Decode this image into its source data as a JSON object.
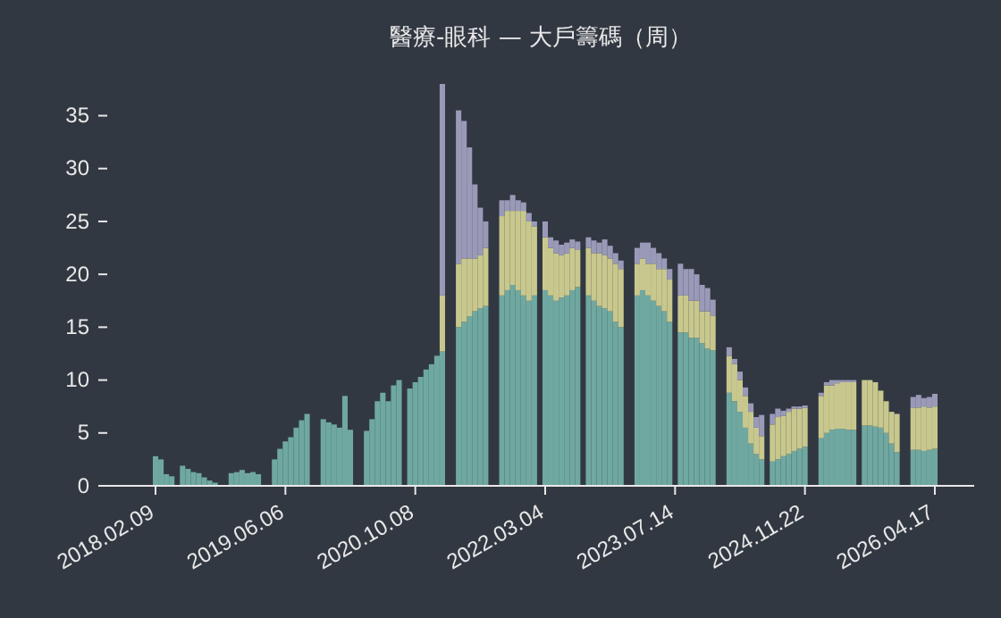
{
  "chart_data": {
    "type": "bar",
    "title": "醫療-眼科 — 大戶籌碼（周）",
    "stacked": true,
    "categories": [
      "2018.02.09",
      null,
      null,
      null,
      null,
      null,
      null,
      null,
      null,
      null,
      null,
      null,
      null,
      null,
      null,
      null,
      null,
      null,
      null,
      null,
      null,
      null,
      null,
      null,
      "2019.06.06",
      null,
      null,
      null,
      null,
      null,
      null,
      null,
      null,
      null,
      null,
      null,
      null,
      null,
      null,
      null,
      null,
      null,
      null,
      null,
      null,
      null,
      null,
      null,
      "2020.10.08",
      null,
      null,
      null,
      null,
      null,
      null,
      null,
      null,
      null,
      null,
      null,
      null,
      null,
      null,
      null,
      null,
      null,
      null,
      null,
      null,
      null,
      null,
      null,
      "2022.03.04",
      null,
      null,
      null,
      null,
      null,
      null,
      null,
      null,
      null,
      null,
      null,
      null,
      null,
      null,
      null,
      null,
      null,
      null,
      null,
      null,
      null,
      null,
      null,
      "2023.07.14",
      null,
      null,
      null,
      null,
      null,
      null,
      null,
      null,
      null,
      null,
      null,
      null,
      null,
      null,
      null,
      null,
      null,
      null,
      null,
      null,
      null,
      null,
      null,
      "2024.11.22",
      null,
      null,
      null,
      null,
      null,
      null,
      null,
      null,
      null,
      null,
      null,
      null,
      null,
      null,
      null,
      null,
      null,
      null,
      null,
      null,
      null,
      null,
      null,
      "2026.04.17"
    ],
    "series": [
      {
        "color": "#6fa8a0",
        "values": [
          2.8,
          2.5,
          1.1,
          0.9,
          null,
          1.9,
          1.6,
          1.3,
          1.2,
          0.8,
          0.5,
          0.3,
          null,
          null,
          1.2,
          1.3,
          1.5,
          1.2,
          1.3,
          1.1,
          null,
          null,
          2.5,
          3.5,
          4.2,
          4.6,
          5.5,
          6.2,
          6.8,
          null,
          null,
          6.3,
          6.0,
          5.8,
          5.5,
          8.5,
          5.3,
          null,
          null,
          5.2,
          6.3,
          8.0,
          8.8,
          8.0,
          9.5,
          10.0,
          null,
          9.2,
          9.8,
          10.3,
          11.0,
          11.5,
          12.3,
          12.7,
          null,
          null,
          15,
          15.5,
          16,
          16.5,
          16.8,
          17,
          null,
          null,
          18,
          18.5,
          19,
          18.5,
          18,
          17.5,
          18,
          null,
          18.5,
          18,
          17.5,
          17.8,
          18,
          18.5,
          18.8,
          null,
          18,
          17.5,
          17,
          16.8,
          16.5,
          15.5,
          15,
          null,
          null,
          18,
          18.5,
          18,
          17.5,
          17,
          16.5,
          15.5,
          null,
          14.5,
          14.5,
          14,
          14,
          13.5,
          13,
          12.8,
          null,
          null,
          8.8,
          8,
          7,
          5.5,
          4,
          3,
          2.5,
          null,
          2.3,
          2.5,
          2.8,
          3,
          3.3,
          3.5,
          3.7,
          null,
          null,
          4.5,
          5,
          5.3,
          5.4,
          5.4,
          5.3,
          5.3,
          null,
          5.7,
          5.7,
          5.6,
          5.5,
          5,
          4,
          3.2,
          null,
          null,
          3.4,
          3.4,
          3.3,
          3.4,
          3.5
        ]
      },
      {
        "color": "#c8c88e",
        "values": [
          null,
          null,
          null,
          null,
          null,
          null,
          null,
          null,
          null,
          null,
          null,
          null,
          null,
          null,
          null,
          null,
          null,
          null,
          null,
          null,
          null,
          null,
          null,
          null,
          null,
          null,
          null,
          null,
          null,
          null,
          null,
          null,
          null,
          null,
          null,
          null,
          null,
          null,
          null,
          null,
          null,
          null,
          null,
          null,
          null,
          null,
          null,
          null,
          null,
          null,
          null,
          null,
          null,
          5.3,
          null,
          null,
          6,
          6,
          5.5,
          5,
          5,
          5.5,
          null,
          null,
          7.5,
          7.5,
          7,
          7.5,
          8,
          7.5,
          6.5,
          null,
          5,
          4.5,
          4.5,
          4,
          4,
          4,
          3.5,
          null,
          4.5,
          4.5,
          5,
          5,
          5,
          5.5,
          5.5,
          null,
          null,
          3,
          3,
          3,
          3.5,
          3.5,
          4,
          4,
          null,
          3.5,
          3.5,
          3.5,
          3.5,
          3,
          3.5,
          3.3,
          null,
          null,
          3.5,
          3.5,
          3,
          3,
          3,
          2.5,
          2.2,
          null,
          3.5,
          4,
          3.8,
          4,
          4,
          3.8,
          3.7,
          null,
          null,
          4,
          4.5,
          4.2,
          4.3,
          4.4,
          4.5,
          4.5,
          null,
          4.3,
          4.3,
          4.2,
          3.5,
          3,
          3,
          3.6,
          null,
          null,
          4,
          4,
          4.2,
          4,
          4
        ]
      },
      {
        "color": "#9a9ab8",
        "values": [
          null,
          null,
          null,
          null,
          null,
          null,
          null,
          null,
          null,
          null,
          null,
          null,
          null,
          null,
          null,
          null,
          null,
          null,
          null,
          null,
          null,
          null,
          null,
          null,
          null,
          null,
          null,
          null,
          null,
          null,
          null,
          null,
          null,
          null,
          null,
          null,
          null,
          null,
          null,
          null,
          null,
          null,
          null,
          null,
          null,
          null,
          null,
          null,
          null,
          null,
          null,
          null,
          null,
          20,
          null,
          null,
          14.5,
          13,
          10.5,
          7,
          4.5,
          2.5,
          null,
          null,
          1.5,
          1,
          1.5,
          1,
          0.8,
          0.8,
          0.5,
          null,
          1.5,
          1,
          1.2,
          1,
          1,
          0.8,
          0.8,
          null,
          1,
          1.2,
          1,
          1.5,
          1.2,
          1,
          0.8,
          null,
          null,
          1.5,
          1.5,
          2,
          1.5,
          1.5,
          1,
          1,
          null,
          3,
          2.5,
          3,
          2.5,
          2.5,
          2.2,
          1.5,
          null,
          null,
          0.8,
          0.5,
          0.8,
          0.8,
          0.8,
          1,
          2,
          null,
          1,
          0.8,
          0.5,
          0.3,
          0.2,
          0.2,
          0.2,
          null,
          null,
          0.3,
          0.3,
          0.5,
          0.3,
          0.2,
          0.2,
          0.2,
          null,
          null,
          null,
          null,
          null,
          null,
          null,
          null,
          null,
          null,
          1,
          1.2,
          0.8,
          1,
          1.2
        ]
      }
    ],
    "ylim": [
      0,
      38
    ],
    "yticks": [
      0,
      5,
      10,
      15,
      20,
      25,
      30,
      35
    ]
  }
}
